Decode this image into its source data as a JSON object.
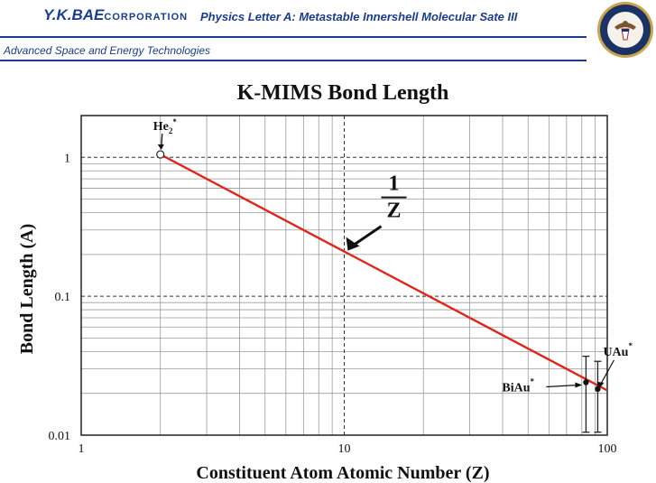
{
  "header": {
    "logo_main": "Y.K.BAE",
    "logo_sub": "CORPORATION",
    "title": "Physics Letter A: Metastable Innershell Molecular Sate III",
    "subtitle": "Advanced Space and Energy Technologies",
    "seal_icon": "us-department-of-defense-seal",
    "brand_color": "#1a3d8f"
  },
  "chart_data": {
    "type": "line",
    "title": "K-MIMS Bond Length",
    "xlabel": "Constituent Atom Atomic Number (Z)",
    "ylabel": "Bond Length (A)",
    "x_scale": "log",
    "y_scale": "log",
    "xlim": [
      1,
      100
    ],
    "ylim": [
      0.01,
      2
    ],
    "x_ticks": [
      {
        "value": 1,
        "label": "1"
      },
      {
        "value": 10,
        "label": "10"
      },
      {
        "value": 100,
        "label": "100"
      }
    ],
    "y_ticks": [
      {
        "value": 0.01,
        "label": "0.01"
      },
      {
        "value": 0.1,
        "label": "0.1"
      },
      {
        "value": 1,
        "label": "1"
      }
    ],
    "grid": true,
    "line_color": "#e0261b",
    "series": [
      {
        "name": "",
        "x": [
          2,
          100
        ],
        "y": [
          1.05,
          0.021
        ]
      }
    ],
    "line_annotation": {
      "numerator": "1",
      "denominator": "Z",
      "x": 10,
      "y": 0.21
    },
    "points": [
      {
        "label": "He",
        "sub": "2",
        "sup": "*",
        "x": 2,
        "y": 1.05,
        "marker": "open-circle"
      },
      {
        "label": "BiAu",
        "sup": "*",
        "x": 83,
        "y": 0.024,
        "marker": "filled-circle",
        "err_low": 0.0105,
        "err_high": 0.037
      },
      {
        "label": "UAu",
        "sup": "*",
        "x": 92,
        "y": 0.0215,
        "marker": "filled-circle",
        "err_low": 0.0105,
        "err_high": 0.034
      }
    ]
  }
}
